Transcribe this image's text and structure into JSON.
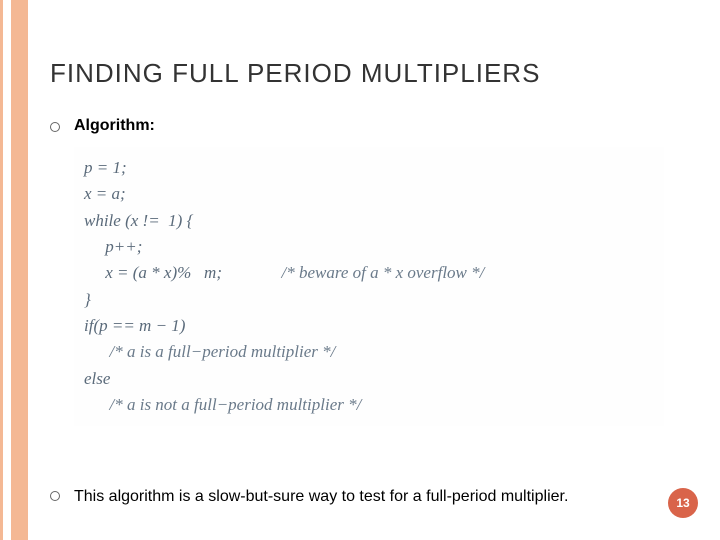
{
  "title": "FINDING FULL PERIOD MULTIPLIERS",
  "bullets": {
    "b0": "Algorithm:",
    "b1": "This algorithm is a slow-but-sure way to test for a full-period multiplier."
  },
  "code": {
    "l0": "p = 1;",
    "l1": "x = a;",
    "l2": "",
    "l3": "while (x !=  1) {",
    "l4": "     p++;",
    "l5_left": "     x = (a * x)%   m;",
    "l5_comment": "/* beware of a * x overflow */",
    "l6": "}",
    "l7": "if(p == m − 1)",
    "l8_comment": "      /* a is a full−period multiplier */",
    "l9": "else",
    "l10_comment": "      /* a is not a full−period multiplier */"
  },
  "page_number": "13",
  "colors": {
    "stripe": "#f4b894",
    "badge": "#d9644a",
    "title": "#333333",
    "code": "#5a6a7a"
  }
}
